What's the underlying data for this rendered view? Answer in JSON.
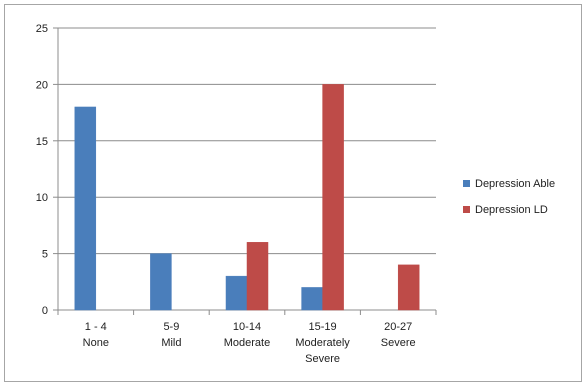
{
  "chart_data": {
    "type": "bar",
    "categories": [
      [
        "1 - 4",
        "None"
      ],
      [
        "5-9",
        "Mild"
      ],
      [
        "10-14",
        "Moderate"
      ],
      [
        "15-19",
        "Moderately",
        "Severe"
      ],
      [
        "20-27",
        "Severe"
      ]
    ],
    "series": [
      {
        "name": "Depression Able",
        "color": "#4a7ebb",
        "values": [
          18,
          5,
          3,
          2,
          0
        ]
      },
      {
        "name": "Depression LD",
        "color": "#be4b48",
        "values": [
          0,
          0,
          6,
          20,
          4
        ]
      }
    ],
    "title": "",
    "xlabel": "",
    "ylabel": "",
    "ylim": [
      0,
      25
    ],
    "yticks": [
      0,
      5,
      10,
      15,
      20,
      25
    ],
    "grid": true,
    "legend_position": "right"
  }
}
